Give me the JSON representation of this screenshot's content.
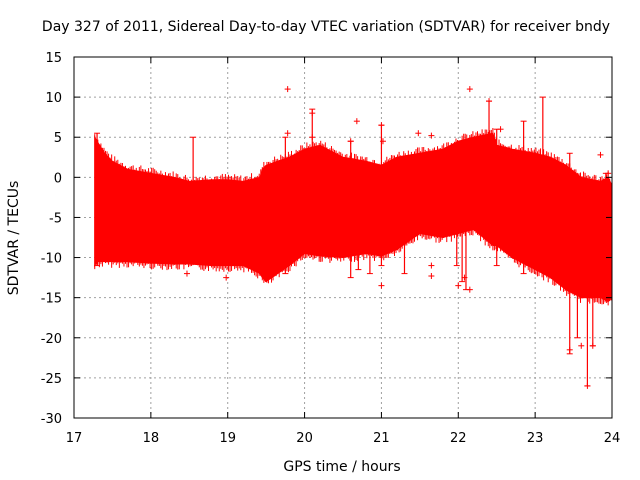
{
  "chart_data": {
    "type": "scatter",
    "title": "Day 327 of 2011, Sidereal Day-to-day VTEC variation (SDTVAR) for receiver bndy",
    "xlabel": "GPS time / hours",
    "ylabel": "SDTVAR / TECUs",
    "xlim": [
      17,
      24
    ],
    "ylim": [
      -30,
      15
    ],
    "grid": true,
    "marker": "+",
    "color": "#ff0000",
    "x_ticks": [
      17,
      18,
      19,
      20,
      21,
      22,
      23,
      24
    ],
    "y_ticks": [
      15,
      10,
      5,
      0,
      -5,
      -10,
      -15,
      -20,
      -25,
      -30
    ],
    "x_tick_labels": [
      "17",
      "18",
      "19",
      "20",
      "21",
      "22",
      "23",
      "24"
    ],
    "y_tick_labels": [
      "15",
      "10",
      "5",
      "0",
      "-5",
      "-10",
      "-15",
      "-20",
      "-25",
      "-30"
    ],
    "series": [
      {
        "name": "SDTVAR",
        "envelope_x": [
          17.27,
          17.3,
          17.4,
          17.5,
          17.7,
          18.0,
          18.3,
          18.5,
          18.8,
          19.0,
          19.2,
          19.42,
          19.45,
          19.5,
          19.8,
          20.0,
          20.2,
          20.5,
          20.8,
          21.0,
          21.2,
          21.5,
          21.8,
          22.0,
          22.2,
          22.45,
          22.5,
          22.7,
          23.0,
          23.2,
          23.4,
          23.6,
          23.85,
          23.95,
          24.0
        ],
        "envelope_upper": [
          5.0,
          4.5,
          3.0,
          2.0,
          1.0,
          0.5,
          0.0,
          -0.5,
          -0.3,
          -0.3,
          -0.5,
          0.0,
          1.0,
          1.5,
          2.5,
          3.5,
          4.0,
          2.5,
          2.0,
          1.5,
          2.5,
          3.0,
          3.5,
          4.5,
          5.0,
          5.5,
          4.0,
          3.5,
          3.0,
          2.5,
          1.5,
          0.0,
          -0.5,
          0.0,
          -1.0
        ],
        "envelope_lower": [
          -11.0,
          -10.5,
          -10.5,
          -10.5,
          -10.5,
          -10.7,
          -10.8,
          -10.8,
          -11.0,
          -11.0,
          -11.0,
          -12.0,
          -12.5,
          -13.0,
          -11.0,
          -9.5,
          -9.8,
          -10.0,
          -9.5,
          -9.8,
          -9.0,
          -7.0,
          -7.5,
          -7.0,
          -6.5,
          -8.5,
          -8.5,
          -10.0,
          -11.5,
          -12.5,
          -14.0,
          -15.0,
          -15.0,
          -15.5,
          -15.0
        ],
        "outliers": [
          {
            "x": 18.47,
            "y": -12
          },
          {
            "x": 18.98,
            "y": -12.5
          },
          {
            "x": 19.78,
            "y": 11
          },
          {
            "x": 19.78,
            "y": 5.5
          },
          {
            "x": 20.1,
            "y": 8
          },
          {
            "x": 20.1,
            "y": 5
          },
          {
            "x": 20.6,
            "y": 4.5
          },
          {
            "x": 20.68,
            "y": 7
          },
          {
            "x": 21.0,
            "y": 6.5
          },
          {
            "x": 21.02,
            "y": 4.5
          },
          {
            "x": 21.0,
            "y": -13.5
          },
          {
            "x": 21.48,
            "y": 5.5
          },
          {
            "x": 21.65,
            "y": 5.2
          },
          {
            "x": 21.65,
            "y": -11
          },
          {
            "x": 21.65,
            "y": -12.3
          },
          {
            "x": 22.0,
            "y": -13.5
          },
          {
            "x": 22.08,
            "y": -12.5
          },
          {
            "x": 22.15,
            "y": 11
          },
          {
            "x": 22.15,
            "y": -14
          },
          {
            "x": 22.4,
            "y": 9.5
          },
          {
            "x": 22.55,
            "y": 6
          },
          {
            "x": 23.45,
            "y": -21.5
          },
          {
            "x": 23.6,
            "y": -21
          },
          {
            "x": 23.68,
            "y": -26
          },
          {
            "x": 23.75,
            "y": -21
          },
          {
            "x": 23.85,
            "y": 2.8
          },
          {
            "x": 23.95,
            "y": 0.5
          }
        ],
        "spikes": [
          {
            "x": 17.3,
            "y0": -11,
            "y1": 5.5
          },
          {
            "x": 18.55,
            "y0": -5,
            "y1": 5
          },
          {
            "x": 19.45,
            "y0": -12,
            "y1": 0
          },
          {
            "x": 19.75,
            "y0": -12,
            "y1": 5
          },
          {
            "x": 20.1,
            "y0": -2,
            "y1": 8.5
          },
          {
            "x": 20.6,
            "y0": -12.5,
            "y1": 4.5
          },
          {
            "x": 20.7,
            "y0": -11.5,
            "y1": 0
          },
          {
            "x": 20.85,
            "y0": -12,
            "y1": -5
          },
          {
            "x": 21.0,
            "y0": -11,
            "y1": 6.5
          },
          {
            "x": 21.3,
            "y0": -12,
            "y1": -7
          },
          {
            "x": 21.98,
            "y0": -11,
            "y1": 4
          },
          {
            "x": 22.05,
            "y0": -13,
            "y1": 4
          },
          {
            "x": 22.1,
            "y0": -14,
            "y1": 4
          },
          {
            "x": 22.4,
            "y0": -7,
            "y1": 9.5
          },
          {
            "x": 22.5,
            "y0": -11,
            "y1": 6
          },
          {
            "x": 22.85,
            "y0": -12,
            "y1": 7
          },
          {
            "x": 23.1,
            "y0": -11,
            "y1": 10
          },
          {
            "x": 23.45,
            "y0": -22,
            "y1": 3
          },
          {
            "x": 23.55,
            "y0": -20,
            "y1": -5
          },
          {
            "x": 23.68,
            "y0": -26,
            "y1": -12
          },
          {
            "x": 23.75,
            "y0": -21,
            "y1": -14
          },
          {
            "x": 23.92,
            "y0": -15,
            "y1": 0.5
          }
        ]
      }
    ]
  }
}
